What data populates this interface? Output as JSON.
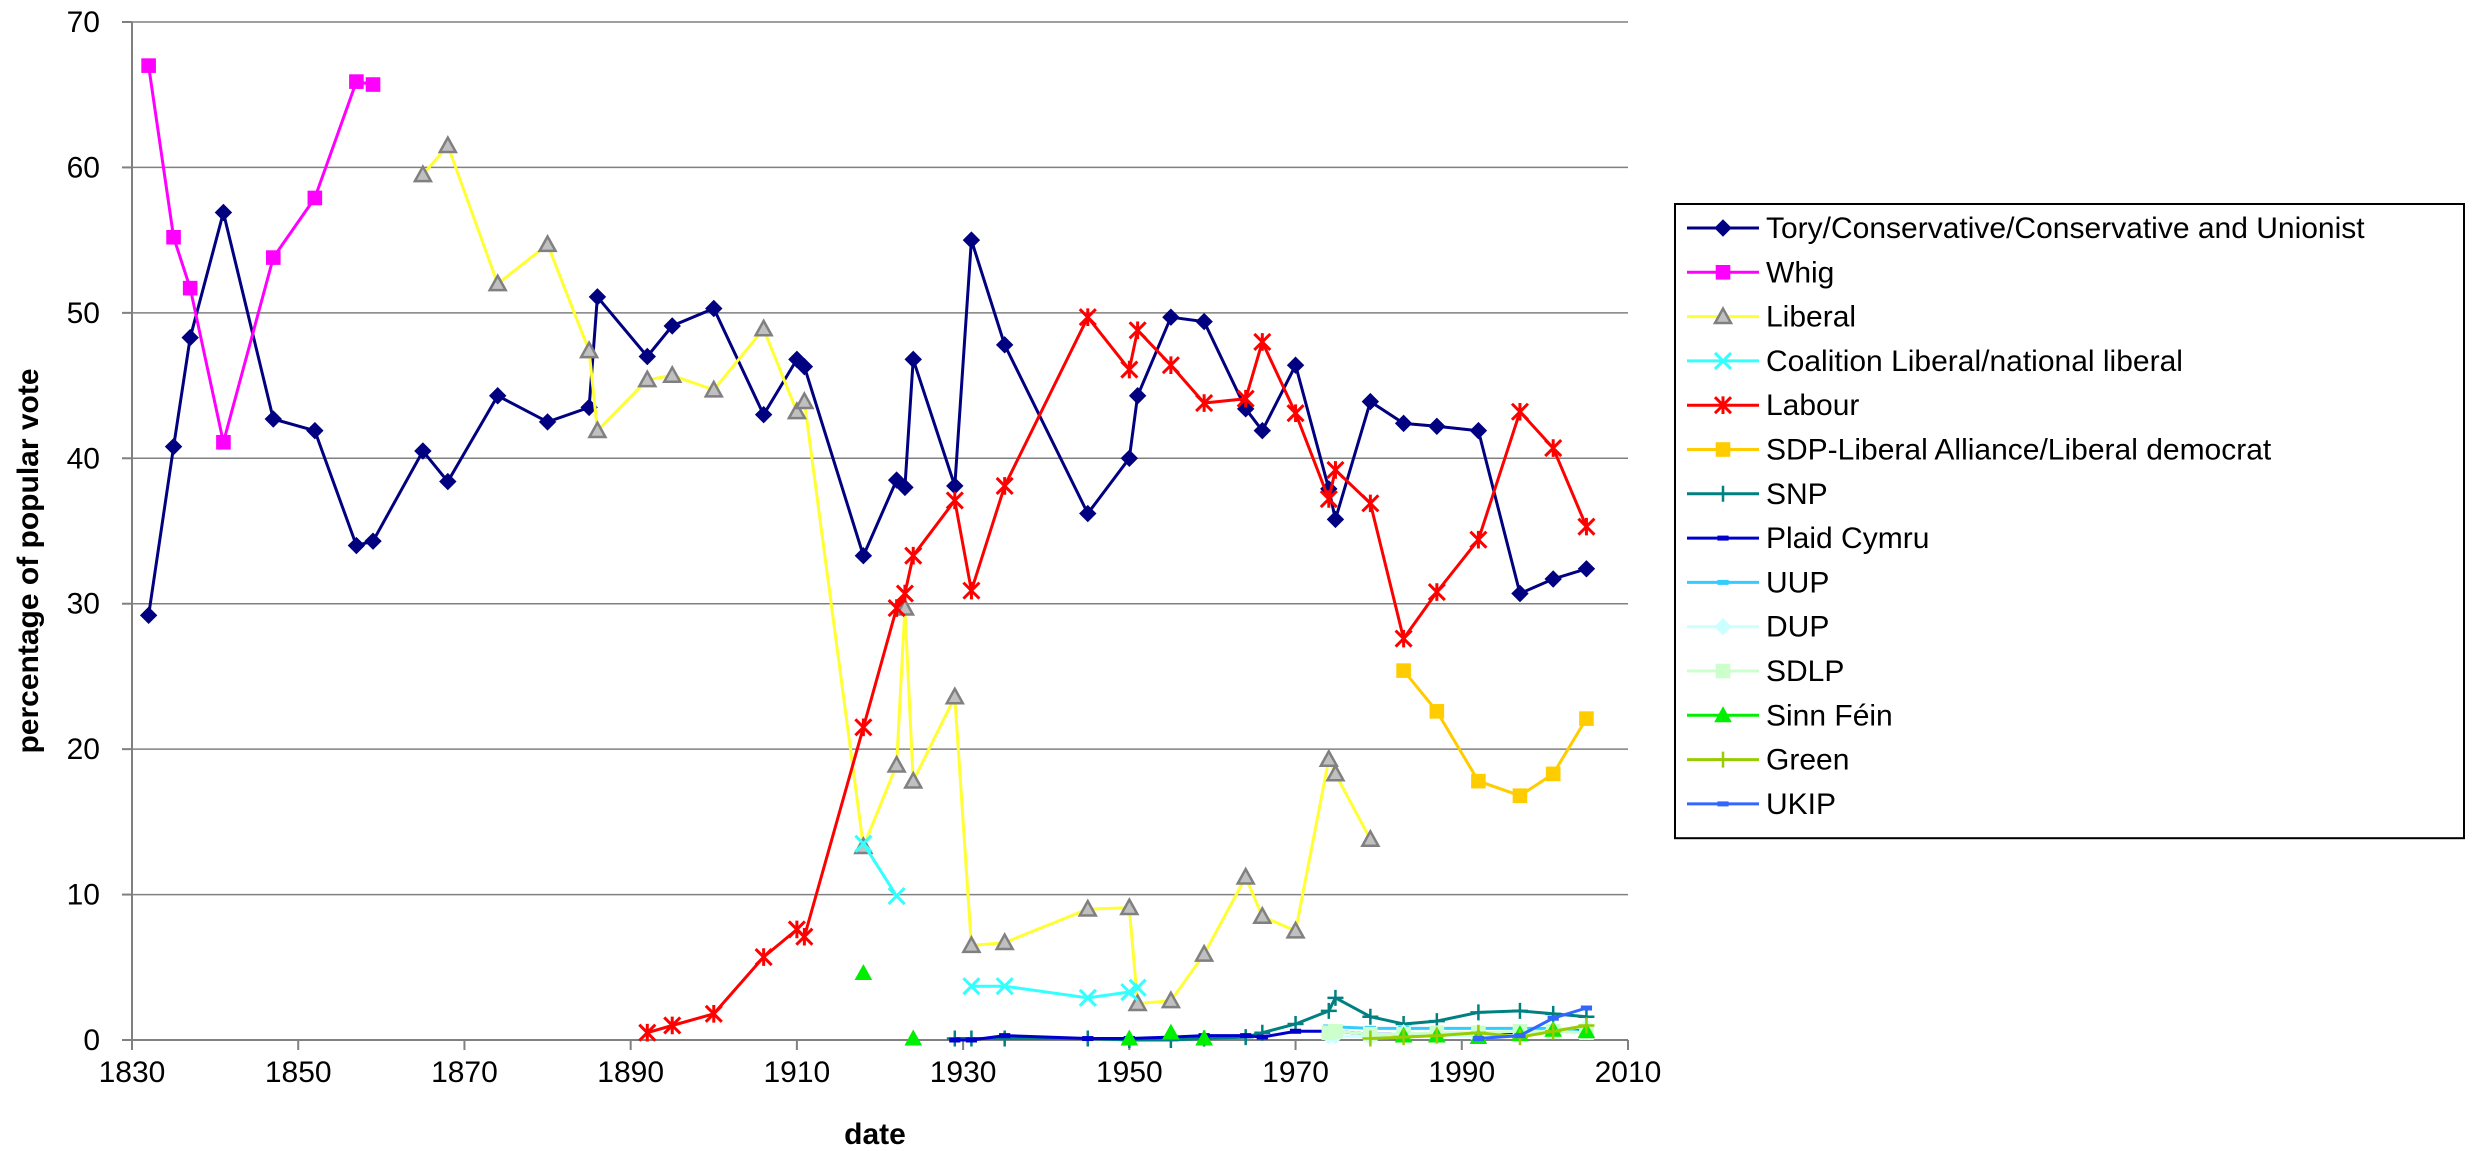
{
  "chart_data": {
    "type": "line",
    "title": "",
    "xlabel": "date",
    "ylabel": "percentage of popular vote",
    "xlim": [
      1830,
      2010
    ],
    "ylim": [
      0,
      70
    ],
    "x_ticks": [
      1830,
      1850,
      1870,
      1890,
      1910,
      1930,
      1950,
      1970,
      1990,
      2010
    ],
    "y_ticks": [
      0,
      10,
      20,
      30,
      40,
      50,
      60,
      70
    ],
    "grid": "horizontal",
    "legend_position": "right",
    "series": [
      {
        "name": "Tory/Conservative/Conservative and Unionist",
        "color": "#000080",
        "marker": "diamond",
        "points": [
          [
            1832,
            29.2
          ],
          [
            1835,
            40.8
          ],
          [
            1837,
            48.3
          ],
          [
            1841,
            56.9
          ],
          [
            1847,
            42.7
          ],
          [
            1852,
            41.9
          ],
          [
            1857,
            34.0
          ],
          [
            1859,
            34.3
          ],
          [
            1865,
            40.5
          ],
          [
            1868,
            38.4
          ],
          [
            1874,
            44.3
          ],
          [
            1880,
            42.5
          ],
          [
            1885,
            43.5
          ],
          [
            1886,
            51.1
          ],
          [
            1892,
            47.0
          ],
          [
            1895,
            49.1
          ],
          [
            1900,
            50.3
          ],
          [
            1906,
            43.0
          ],
          [
            1910,
            46.8
          ],
          [
            1910.9,
            46.3
          ],
          [
            1918,
            33.3
          ],
          [
            1922,
            38.5
          ],
          [
            1923,
            38.0
          ],
          [
            1924,
            46.8
          ],
          [
            1929,
            38.1
          ],
          [
            1931,
            55.0
          ],
          [
            1935,
            47.8
          ],
          [
            1945,
            36.2
          ],
          [
            1950,
            40.0
          ],
          [
            1951,
            44.3
          ],
          [
            1955,
            49.7
          ],
          [
            1959,
            49.4
          ],
          [
            1964,
            43.4
          ],
          [
            1966,
            41.9
          ],
          [
            1970,
            46.4
          ],
          [
            1974,
            37.9
          ],
          [
            1974.8,
            35.8
          ],
          [
            1979,
            43.9
          ],
          [
            1983,
            42.4
          ],
          [
            1987,
            42.2
          ],
          [
            1992,
            41.9
          ],
          [
            1997,
            30.7
          ],
          [
            2001,
            31.7
          ],
          [
            2005,
            32.4
          ]
        ]
      },
      {
        "name": "Whig",
        "color": "#ff00ff",
        "marker": "square",
        "points": [
          [
            1832,
            67.0
          ],
          [
            1835,
            55.2
          ],
          [
            1837,
            51.7
          ],
          [
            1841,
            41.1
          ],
          [
            1847,
            53.8
          ],
          [
            1852,
            57.9
          ],
          [
            1857,
            65.9
          ],
          [
            1859,
            65.7
          ]
        ]
      },
      {
        "name": "Liberal",
        "color": "#ffff33",
        "marker": "triangle-hollow",
        "points": [
          [
            1865,
            59.5
          ],
          [
            1868,
            61.5
          ],
          [
            1874,
            52.0
          ],
          [
            1880,
            54.7
          ],
          [
            1885,
            47.4
          ],
          [
            1886,
            41.9
          ],
          [
            1892,
            45.4
          ],
          [
            1895,
            45.7
          ],
          [
            1900,
            44.7
          ],
          [
            1906,
            48.9
          ],
          [
            1910,
            43.2
          ],
          [
            1910.9,
            43.9
          ],
          [
            1918,
            13.3
          ],
          [
            1922,
            18.9
          ],
          [
            1923,
            29.7
          ],
          [
            1924,
            17.8
          ],
          [
            1929,
            23.6
          ],
          [
            1931,
            6.5
          ],
          [
            1935,
            6.7
          ],
          [
            1945,
            9.0
          ],
          [
            1950,
            9.1
          ],
          [
            1951,
            2.5
          ],
          [
            1955,
            2.7
          ],
          [
            1959,
            5.9
          ],
          [
            1964,
            11.2
          ],
          [
            1966,
            8.5
          ],
          [
            1970,
            7.5
          ],
          [
            1974,
            19.3
          ],
          [
            1974.8,
            18.3
          ],
          [
            1979,
            13.8
          ]
        ]
      },
      {
        "name": "Coalition Liberal/national liberal",
        "color": "#33ffff",
        "marker": "x",
        "points": [
          [
            1918,
            13.5
          ],
          [
            1922,
            9.9
          ]
        ],
        "break_after": 1,
        "points2": [
          [
            1931,
            3.7
          ],
          [
            1935,
            3.7
          ],
          [
            1945,
            2.9
          ],
          [
            1950,
            3.3
          ],
          [
            1951,
            3.6
          ]
        ]
      },
      {
        "name": "Labour",
        "color": "#ff0000",
        "marker": "star",
        "points": [
          [
            1892,
            0.5
          ],
          [
            1895,
            1.0
          ],
          [
            1900,
            1.8
          ],
          [
            1906,
            5.7
          ],
          [
            1910,
            7.6
          ],
          [
            1910.9,
            7.1
          ],
          [
            1918,
            21.5
          ],
          [
            1922,
            29.7
          ],
          [
            1923,
            30.7
          ],
          [
            1924,
            33.3
          ],
          [
            1929,
            37.1
          ],
          [
            1931,
            30.9
          ],
          [
            1935,
            38.1
          ],
          [
            1945,
            49.7
          ],
          [
            1950,
            46.1
          ],
          [
            1951,
            48.8
          ],
          [
            1955,
            46.4
          ],
          [
            1959,
            43.8
          ],
          [
            1964,
            44.1
          ],
          [
            1966,
            48.0
          ],
          [
            1970,
            43.1
          ],
          [
            1974,
            37.2
          ],
          [
            1974.8,
            39.2
          ],
          [
            1979,
            36.9
          ],
          [
            1983,
            27.6
          ],
          [
            1987,
            30.8
          ],
          [
            1992,
            34.4
          ],
          [
            1997,
            43.2
          ],
          [
            2001,
            40.7
          ],
          [
            2005,
            35.3
          ]
        ]
      },
      {
        "name": "SDP-Liberal Alliance/Liberal democrat",
        "color": "#ffcc00",
        "marker": "square",
        "points": [
          [
            1983,
            25.4
          ],
          [
            1987,
            22.6
          ],
          [
            1992,
            17.8
          ],
          [
            1997,
            16.8
          ],
          [
            2001,
            18.3
          ],
          [
            2005,
            22.1
          ]
        ]
      },
      {
        "name": "SNP",
        "color": "#008080",
        "marker": "plus",
        "points": [
          [
            1929,
            0.1
          ],
          [
            1931,
            0.1
          ],
          [
            1935,
            0.1
          ],
          [
            1945,
            0.1
          ],
          [
            1950,
            0.0
          ],
          [
            1955,
            0.0
          ],
          [
            1959,
            0.1
          ],
          [
            1964,
            0.2
          ],
          [
            1966,
            0.5
          ],
          [
            1970,
            1.1
          ],
          [
            1974,
            2.0
          ],
          [
            1974.8,
            2.9
          ],
          [
            1979,
            1.6
          ],
          [
            1983,
            1.1
          ],
          [
            1987,
            1.3
          ],
          [
            1992,
            1.9
          ],
          [
            1997,
            2.0
          ],
          [
            2001,
            1.8
          ],
          [
            2005,
            1.6
          ]
        ]
      },
      {
        "name": "Plaid Cymru",
        "color": "#0000cc",
        "marker": "dash",
        "points": [
          [
            1929,
            0.0
          ],
          [
            1931,
            0.0
          ],
          [
            1935,
            0.3
          ],
          [
            1945,
            0.1
          ],
          [
            1950,
            0.1
          ],
          [
            1955,
            0.2
          ],
          [
            1959,
            0.3
          ],
          [
            1964,
            0.3
          ],
          [
            1966,
            0.2
          ],
          [
            1970,
            0.6
          ],
          [
            1974,
            0.6
          ],
          [
            1974.8,
            0.6
          ],
          [
            1979,
            0.4
          ],
          [
            1983,
            0.4
          ],
          [
            1987,
            0.4
          ],
          [
            1992,
            0.5
          ],
          [
            1997,
            0.5
          ],
          [
            2001,
            0.7
          ],
          [
            2005,
            0.6
          ]
        ]
      },
      {
        "name": "UUP",
        "color": "#33ccff",
        "marker": "dash",
        "points": [
          [
            1974,
            0.9
          ],
          [
            1974.8,
            0.9
          ],
          [
            1979,
            0.8
          ],
          [
            1983,
            0.8
          ],
          [
            1987,
            0.8
          ],
          [
            1992,
            0.8
          ],
          [
            1997,
            0.8
          ],
          [
            2001,
            0.8
          ],
          [
            2005,
            0.5
          ]
        ]
      },
      {
        "name": "DUP",
        "color": "#ccffff",
        "marker": "diamond",
        "points": [
          [
            1974,
            0.3
          ],
          [
            1974.8,
            0.3
          ],
          [
            1979,
            0.2
          ],
          [
            1983,
            0.5
          ],
          [
            1987,
            0.3
          ],
          [
            1992,
            0.3
          ],
          [
            1997,
            0.3
          ],
          [
            2001,
            0.7
          ],
          [
            2005,
            0.9
          ]
        ]
      },
      {
        "name": "SDLP",
        "color": "#ccffcc",
        "marker": "square",
        "points": [
          [
            1974,
            0.5
          ],
          [
            1974.8,
            0.6
          ],
          [
            1979,
            0.4
          ],
          [
            1983,
            0.4
          ],
          [
            1987,
            0.5
          ],
          [
            1992,
            0.5
          ],
          [
            1997,
            0.6
          ],
          [
            2001,
            0.6
          ],
          [
            2005,
            0.5
          ]
        ]
      },
      {
        "name": "Sinn Féin",
        "color": "#00ee00",
        "marker": "triangle",
        "points_only": true,
        "points": [
          [
            1918,
            4.6
          ],
          [
            1924,
            0.1
          ],
          [
            1950,
            0.1
          ],
          [
            1955,
            0.5
          ],
          [
            1959,
            0.1
          ],
          [
            1983,
            0.3
          ],
          [
            1987,
            0.3
          ],
          [
            1992,
            0.2
          ],
          [
            1997,
            0.4
          ],
          [
            2001,
            0.7
          ],
          [
            2005,
            0.6
          ]
        ]
      },
      {
        "name": "Green",
        "color": "#99cc00",
        "marker": "plus",
        "points": [
          [
            1979,
            0.1
          ],
          [
            1983,
            0.2
          ],
          [
            1987,
            0.3
          ],
          [
            1992,
            0.5
          ],
          [
            1997,
            0.2
          ],
          [
            2001,
            0.6
          ],
          [
            2005,
            1.0
          ]
        ]
      },
      {
        "name": "UKIP",
        "color": "#3366ff",
        "marker": "dash",
        "points": [
          [
            1992,
            0.1
          ],
          [
            1997,
            0.3
          ],
          [
            2001,
            1.5
          ],
          [
            2005,
            2.2
          ]
        ]
      }
    ]
  }
}
